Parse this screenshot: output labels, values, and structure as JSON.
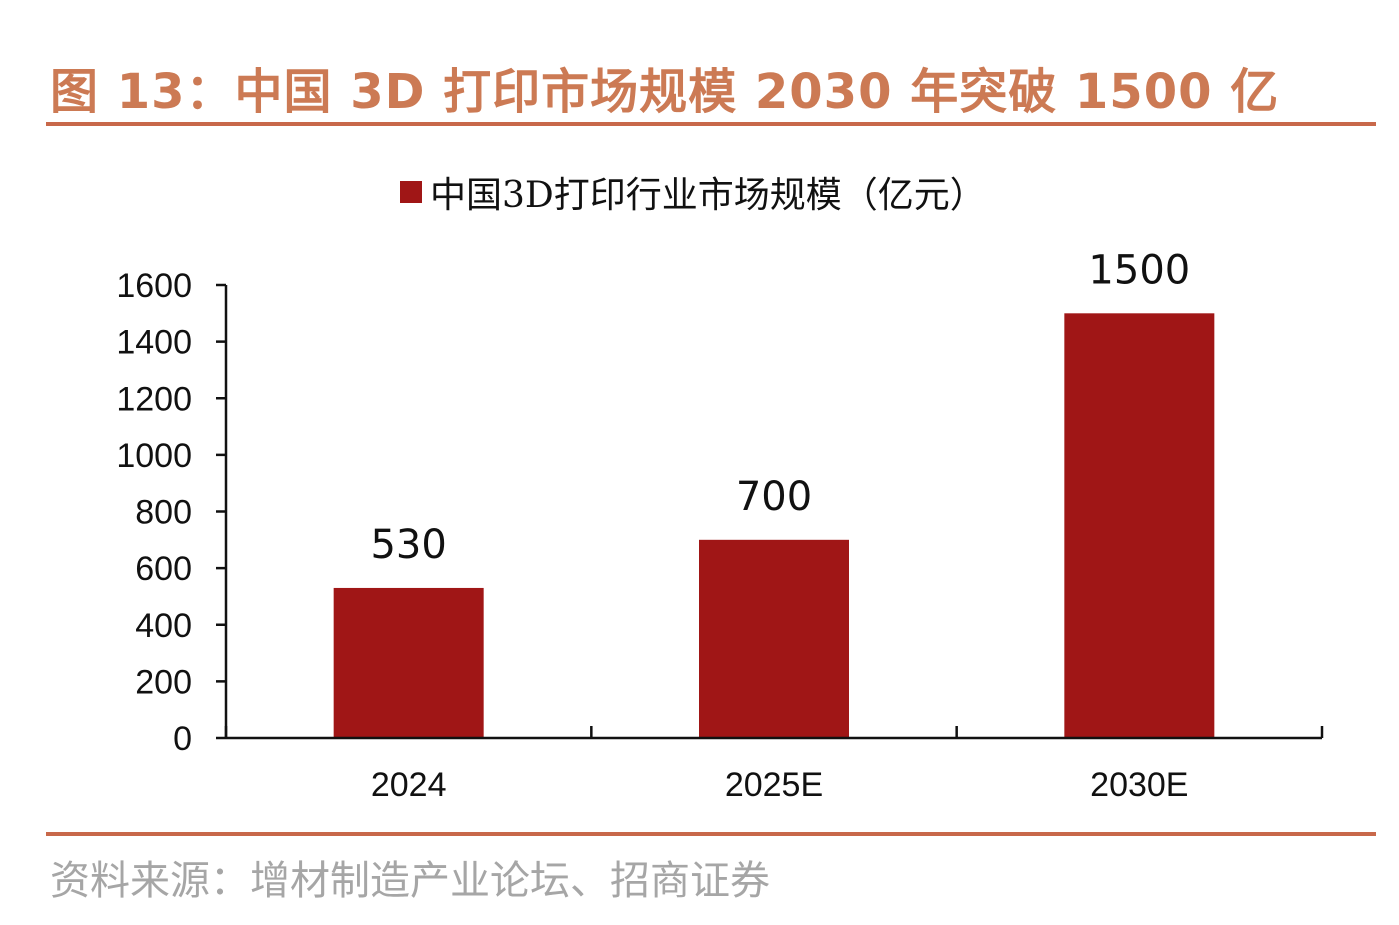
{
  "figure": {
    "title": "图 13：中国 3D 打印市场规模 2030 年突破 1500 亿",
    "source": "资料来源：增材制造产业论坛、招商证券"
  },
  "colors": {
    "title": "#cc7a54",
    "rule": "#c8684a",
    "bar": "#a01616",
    "source": "#a6a6a6"
  },
  "chart_data": {
    "type": "bar",
    "categories": [
      "2024",
      "2025E",
      "2030E"
    ],
    "series": [
      {
        "name": "中国3D打印行业市场规模（亿元）",
        "values": [
          530,
          700,
          1500
        ]
      }
    ],
    "data_labels": [
      "530",
      "700",
      "1500"
    ],
    "y_ticks": [
      0,
      200,
      400,
      600,
      800,
      1000,
      1200,
      1400,
      1600
    ],
    "ylim": [
      0,
      1600
    ],
    "title": "",
    "xlabel": "",
    "ylabel": "",
    "legend_position": "top-center",
    "grid": false
  }
}
